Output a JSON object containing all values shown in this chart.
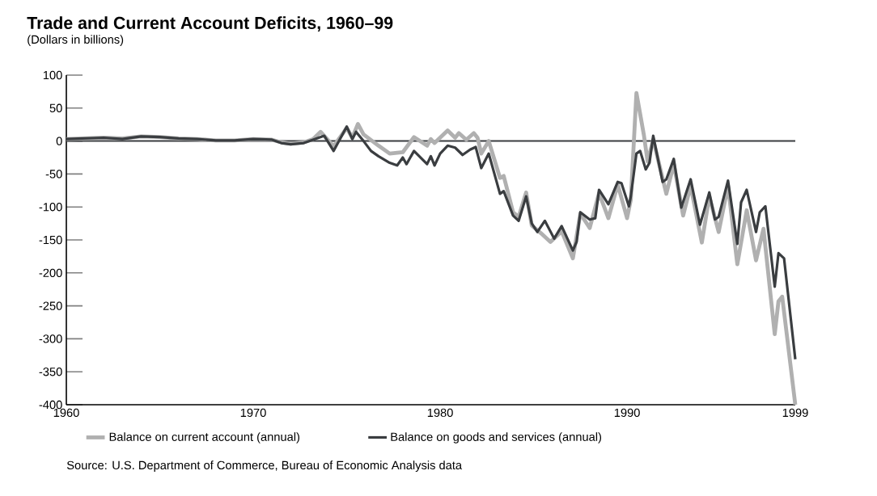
{
  "chart_data": {
    "type": "line",
    "title": "Trade and Current Account Deficits, 1960–99",
    "subtitle": "(Dollars in billions)",
    "annotations": [
      "Source:  U.S. Department of Commerce, Bureau of Economic Analysis data"
    ],
    "xlim": [
      1960,
      1999
    ],
    "xticks": [
      1960,
      1970,
      1980,
      1990,
      1999
    ],
    "ylim": [
      -400,
      100
    ],
    "yticks": [
      -400,
      -350,
      -300,
      -250,
      -200,
      -150,
      -100,
      -50,
      0,
      50,
      100
    ],
    "legend": "bottom",
    "ref_lines": [
      {
        "axis": "y",
        "value": 0,
        "color": "#3a3d40"
      }
    ],
    "series": [
      {
        "name": "Balance on current account (annual)",
        "color": "#b0b0b0",
        "x": [
          1960,
          1961,
          1962,
          1963,
          1964,
          1965,
          1966,
          1967,
          1968,
          1969,
          1970,
          1971,
          1971.5,
          1972,
          1972.7,
          1973.2,
          1973.6,
          1974.3,
          1975.0,
          1975.3,
          1975.6,
          1975.9,
          1976.7,
          1977.3,
          1978.0,
          1978.6,
          1979.3,
          1979.5,
          1979.7,
          1980.4,
          1980.8,
          1981.0,
          1981.4,
          1981.8,
          1982.0,
          1982.2,
          1982.6,
          1983.2,
          1983.4,
          1983.9,
          1984.2,
          1984.6,
          1984.9,
          1985.4,
          1985.9,
          1986.5,
          1987.1,
          1987.5,
          1988.0,
          1988.5,
          1989.0,
          1989.5,
          1990.0,
          1990.2,
          1990.5,
          1990.9,
          1991.1,
          1991.4,
          1992.1,
          1992.5,
          1993.0,
          1993.4,
          1994.0,
          1994.4,
          1994.9,
          1995.4,
          1995.9,
          1996.4,
          1996.9,
          1997.3,
          1997.9,
          1998.1,
          1998.3,
          1999
        ],
        "values": [
          3,
          4,
          5,
          4,
          7,
          6,
          4,
          3,
          1,
          1,
          3,
          2,
          -2,
          -4,
          -2,
          3,
          14,
          -8,
          20,
          5,
          26,
          10,
          -7,
          -19,
          -17,
          6,
          -7,
          3,
          -3,
          16,
          5,
          12,
          2,
          12,
          5,
          -19,
          0,
          -56,
          -53,
          -108,
          -115,
          -78,
          -128,
          -140,
          -153,
          -137,
          -178,
          -110,
          -132,
          -79,
          -117,
          -66,
          -117,
          -89,
          73,
          9,
          -31,
          2,
          -80,
          -35,
          -113,
          -68,
          -154,
          -84,
          -138,
          -68,
          -187,
          -105,
          -181,
          -133,
          -293,
          -243,
          -236,
          -400
        ]
      },
      {
        "name": "Balance on goods and services (annual)",
        "color": "#3a3d40",
        "x": [
          1960,
          1961,
          1962,
          1963,
          1964,
          1965,
          1966,
          1967,
          1968,
          1969,
          1970,
          1971,
          1971.5,
          1972,
          1972.7,
          1973.2,
          1973.8,
          1974.3,
          1975.0,
          1975.3,
          1975.5,
          1975.9,
          1976.3,
          1976.7,
          1977.3,
          1977.7,
          1978.0,
          1978.2,
          1978.6,
          1979.3,
          1979.5,
          1979.7,
          1980.0,
          1980.4,
          1980.8,
          1981.2,
          1981.6,
          1981.9,
          1982.2,
          1982.6,
          1983.2,
          1983.4,
          1983.9,
          1984.2,
          1984.6,
          1984.9,
          1985.2,
          1985.6,
          1986.1,
          1986.5,
          1987.1,
          1987.3,
          1987.5,
          1988.0,
          1988.3,
          1988.5,
          1989.0,
          1989.5,
          1989.7,
          1990.1,
          1990.2,
          1990.5,
          1990.7,
          1991.0,
          1991.2,
          1991.4,
          1991.9,
          1992.1,
          1992.5,
          1992.9,
          1993.4,
          1993.9,
          1994.4,
          1994.7,
          1994.9,
          1995.4,
          1995.9,
          1996.1,
          1996.4,
          1996.9,
          1997.1,
          1997.4,
          1997.9,
          1998.1,
          1998.4,
          1999
        ],
        "values": [
          3,
          4,
          5,
          3,
          7,
          6,
          4,
          3,
          1,
          1,
          3,
          2,
          -3,
          -5,
          -3,
          2,
          8,
          -15,
          22,
          3,
          14,
          0,
          -15,
          -23,
          -33,
          -37,
          -25,
          -35,
          -15,
          -35,
          -23,
          -37,
          -19,
          -7,
          -10,
          -21,
          -13,
          -9,
          -41,
          -19,
          -80,
          -76,
          -113,
          -121,
          -84,
          -125,
          -138,
          -121,
          -148,
          -129,
          -166,
          -153,
          -108,
          -119,
          -117,
          -74,
          -96,
          -62,
          -64,
          -99,
          -84,
          -19,
          -15,
          -43,
          -33,
          8,
          -62,
          -58,
          -27,
          -101,
          -58,
          -127,
          -78,
          -119,
          -115,
          -60,
          -156,
          -93,
          -74,
          -138,
          -108,
          -99,
          -221,
          -170,
          -178,
          -331
        ]
      }
    ]
  }
}
